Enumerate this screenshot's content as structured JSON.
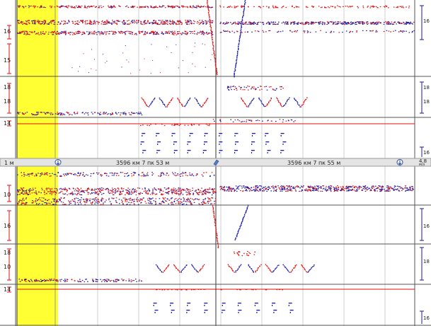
{
  "panels": {
    "top": {
      "left_labels": [
        "16",
        "15",
        "18",
        "18",
        "14"
      ],
      "right_labels": [
        "16",
        "18",
        "18",
        "16"
      ]
    },
    "bottom": {
      "left_labels": [
        "10",
        "16",
        "18",
        "10",
        "14"
      ],
      "right_labels": [
        "16",
        "18",
        "16"
      ]
    }
  },
  "scale_bar": {
    "left_unit": "1 м",
    "left_km_label": "3596 км 7 пк 53 м",
    "right_km_label": "3596 км 7 пк 55 м",
    "right_value": "4.8",
    "right_unit": "м/з"
  },
  "colors": {
    "red": "#e01010",
    "blue": "#1a1aa8",
    "highlight": "#ffff33",
    "grid": "#cfcfcf",
    "border": "#555555",
    "scale_bar_bg": "#e4e4e4"
  }
}
